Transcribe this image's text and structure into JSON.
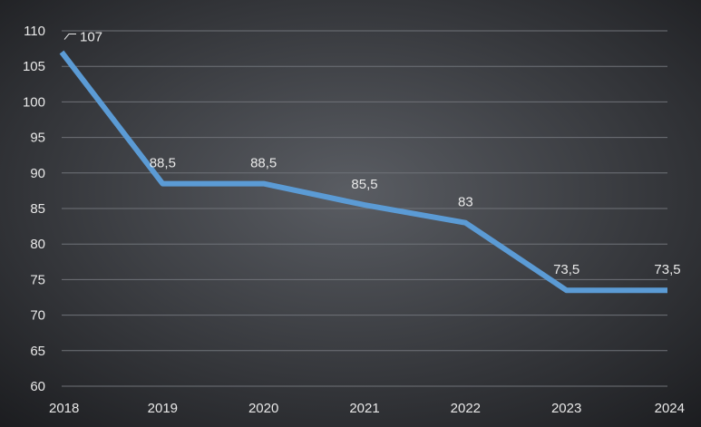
{
  "chart_data": {
    "type": "line",
    "categories": [
      "2018",
      "2019",
      "2020",
      "2021",
      "2022",
      "2023",
      "2024"
    ],
    "series": [
      {
        "values": [
          107,
          88.5,
          88.5,
          85.5,
          83,
          73.5,
          73.5
        ],
        "data_labels": [
          "107",
          "88,5",
          "88,5",
          "85,5",
          "83",
          "73,5",
          "73,5"
        ]
      }
    ],
    "y_ticks": [
      "60",
      "65",
      "70",
      "75",
      "80",
      "85",
      "90",
      "95",
      "100",
      "105",
      "110"
    ],
    "ylim": [
      60,
      110
    ],
    "grid": true,
    "legend": "none",
    "colors": {
      "background_center": "#5a5d63",
      "background_edge": "#1b1c1f",
      "line": "#5b9bd5",
      "text": "#e8e8e8",
      "grid": "#6f7278"
    }
  }
}
